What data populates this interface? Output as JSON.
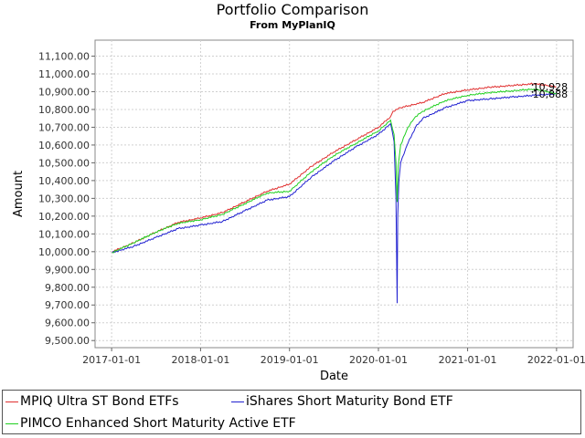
{
  "title": "Portfolio Comparison",
  "subtitle": "From MyPlanIQ",
  "chart_data": {
    "type": "line",
    "title": "Portfolio Comparison",
    "subtitle": "From MyPlanIQ",
    "xlabel": "Date",
    "ylabel": "Amount",
    "x_ticks": [
      "2017-01-01",
      "2018-01-01",
      "2019-01-01",
      "2020-01-01",
      "2021-01-01",
      "2022-01-01"
    ],
    "y_ticks": [
      "9,500.00",
      "9,600.00",
      "9,700.00",
      "9,800.00",
      "9,900.00",
      "10,000.00",
      "10,100.00",
      "10,200.00",
      "10,300.00",
      "10,400.00",
      "10,500.00",
      "10,600.00",
      "10,700.00",
      "10,800.00",
      "10,900.00",
      "11,000.00",
      "11,100.00"
    ],
    "xlim": [
      "2016-10-25",
      "2022-03-10"
    ],
    "ylim": [
      9460,
      11190
    ],
    "grid": true,
    "legend_position": "bottom",
    "end_labels": [
      "10,928",
      "10,888"
    ],
    "series": [
      {
        "name": "MPIQ Ultra ST Bond ETFs",
        "color": "#e03030",
        "points": [
          [
            "2017-01-03",
            10000
          ],
          [
            "2017-04-01",
            10050
          ],
          [
            "2017-07-01",
            10110
          ],
          [
            "2017-10-01",
            10165
          ],
          [
            "2018-01-01",
            10190
          ],
          [
            "2018-04-01",
            10220
          ],
          [
            "2018-07-01",
            10280
          ],
          [
            "2018-10-01",
            10340
          ],
          [
            "2019-01-01",
            10380
          ],
          [
            "2019-04-01",
            10480
          ],
          [
            "2019-07-01",
            10560
          ],
          [
            "2019-10-01",
            10630
          ],
          [
            "2020-01-01",
            10700
          ],
          [
            "2020-02-20",
            10760
          ],
          [
            "2020-03-01",
            10790
          ],
          [
            "2020-04-01",
            10810
          ],
          [
            "2020-07-01",
            10840
          ],
          [
            "2020-10-01",
            10890
          ],
          [
            "2021-01-01",
            10910
          ],
          [
            "2021-04-01",
            10925
          ],
          [
            "2021-07-01",
            10935
          ],
          [
            "2021-10-01",
            10945
          ],
          [
            "2021-12-31",
            10928
          ]
        ]
      },
      {
        "name": "iShares Short Maturity Bond ETF",
        "color": "#2020d0",
        "points": [
          [
            "2017-01-03",
            9995
          ],
          [
            "2017-04-01",
            10030
          ],
          [
            "2017-07-01",
            10080
          ],
          [
            "2017-10-01",
            10130
          ],
          [
            "2018-01-01",
            10150
          ],
          [
            "2018-04-01",
            10170
          ],
          [
            "2018-07-01",
            10230
          ],
          [
            "2018-10-01",
            10290
          ],
          [
            "2019-01-01",
            10310
          ],
          [
            "2019-04-01",
            10420
          ],
          [
            "2019-07-01",
            10510
          ],
          [
            "2019-10-01",
            10590
          ],
          [
            "2020-01-01",
            10660
          ],
          [
            "2020-02-20",
            10720
          ],
          [
            "2020-03-05",
            10620
          ],
          [
            "2020-03-13",
            10300
          ],
          [
            "2020-03-18",
            9710
          ],
          [
            "2020-03-20",
            10200
          ],
          [
            "2020-03-25",
            10400
          ],
          [
            "2020-04-01",
            10500
          ],
          [
            "2020-04-15",
            10550
          ],
          [
            "2020-05-01",
            10610
          ],
          [
            "2020-06-01",
            10700
          ],
          [
            "2020-07-01",
            10750
          ],
          [
            "2020-10-01",
            10810
          ],
          [
            "2021-01-01",
            10850
          ],
          [
            "2021-04-01",
            10860
          ],
          [
            "2021-07-01",
            10870
          ],
          [
            "2021-10-01",
            10880
          ],
          [
            "2021-12-31",
            10888
          ]
        ]
      },
      {
        "name": "PIMCO Enhanced Short Maturity Active ETF",
        "color": "#20d020",
        "points": [
          [
            "2017-01-03",
            9995
          ],
          [
            "2017-04-01",
            10050
          ],
          [
            "2017-07-01",
            10110
          ],
          [
            "2017-10-01",
            10160
          ],
          [
            "2018-01-01",
            10180
          ],
          [
            "2018-04-01",
            10210
          ],
          [
            "2018-07-01",
            10270
          ],
          [
            "2018-10-01",
            10330
          ],
          [
            "2019-01-01",
            10340
          ],
          [
            "2019-04-01",
            10450
          ],
          [
            "2019-07-01",
            10540
          ],
          [
            "2019-10-01",
            10610
          ],
          [
            "2020-01-01",
            10680
          ],
          [
            "2020-02-20",
            10740
          ],
          [
            "2020-03-05",
            10660
          ],
          [
            "2020-03-13",
            10500
          ],
          [
            "2020-03-18",
            10280
          ],
          [
            "2020-03-22",
            10480
          ],
          [
            "2020-04-01",
            10600
          ],
          [
            "2020-05-01",
            10700
          ],
          [
            "2020-06-01",
            10760
          ],
          [
            "2020-07-01",
            10790
          ],
          [
            "2020-10-01",
            10850
          ],
          [
            "2021-01-01",
            10880
          ],
          [
            "2021-04-01",
            10895
          ],
          [
            "2021-07-01",
            10905
          ],
          [
            "2021-10-01",
            10915
          ],
          [
            "2021-12-31",
            10890
          ]
        ]
      }
    ]
  }
}
